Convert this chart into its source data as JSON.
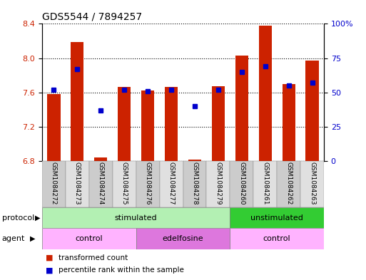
{
  "title": "GDS5544 / 7894257",
  "samples": [
    "GSM1084272",
    "GSM1084273",
    "GSM1084274",
    "GSM1084275",
    "GSM1084276",
    "GSM1084277",
    "GSM1084278",
    "GSM1084279",
    "GSM1084260",
    "GSM1084261",
    "GSM1084262",
    "GSM1084263"
  ],
  "bar_values": [
    7.58,
    8.19,
    6.84,
    7.66,
    7.62,
    7.66,
    6.82,
    7.67,
    8.03,
    8.38,
    7.7,
    7.97
  ],
  "percentile_values": [
    52,
    67,
    37,
    52,
    51,
    52,
    40,
    52,
    65,
    69,
    55,
    57
  ],
  "bar_color": "#cc2200",
  "dot_color": "#0000cc",
  "ylim_left": [
    6.8,
    8.4
  ],
  "ylim_right": [
    0,
    100
  ],
  "yticks_left": [
    6.8,
    7.2,
    7.6,
    8.0,
    8.4
  ],
  "yticks_right": [
    0,
    25,
    50,
    75,
    100
  ],
  "ytick_right_labels": [
    "0",
    "25",
    "50",
    "75",
    "100%"
  ],
  "background_color": "#ffffff",
  "protocol_groups": [
    {
      "label": "stimulated",
      "start": 0,
      "end": 8,
      "color": "#b3f0b3"
    },
    {
      "label": "unstimulated",
      "start": 8,
      "end": 12,
      "color": "#33cc33"
    }
  ],
  "agent_groups": [
    {
      "label": "control",
      "start": 0,
      "end": 4,
      "color": "#ffb3ff"
    },
    {
      "label": "edelfosine",
      "start": 4,
      "end": 8,
      "color": "#dd77dd"
    },
    {
      "label": "control",
      "start": 8,
      "end": 12,
      "color": "#ffb3ff"
    }
  ],
  "legend_red_label": "transformed count",
  "legend_blue_label": "percentile rank within the sample",
  "bar_width": 0.55,
  "left_label_color": "#cc2200",
  "right_label_color": "#0000cc"
}
